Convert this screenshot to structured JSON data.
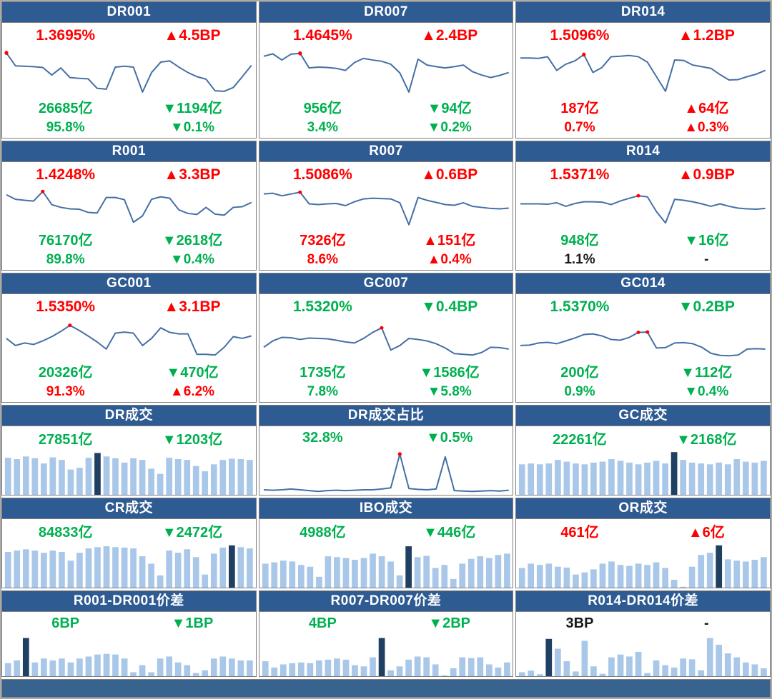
{
  "colors": {
    "header_bg": "#2F5B93",
    "footer_bg": "#38638F",
    "panel_border": "#7F7F7F",
    "frame_border": "#ABABAB",
    "line": "#4470A6",
    "marker": "#FF0000",
    "bar_light": "#A9C7E8",
    "bar_dark": "#1F4063",
    "red": "#FF0000",
    "green": "#00B050",
    "black": "#1A1A1A"
  },
  "chart_data": [
    {
      "title": "DR001",
      "type": "line",
      "stats": [
        {
          "text": "1.3695%",
          "dir": "none",
          "color": "red"
        },
        {
          "text": "4.5BP",
          "dir": "up",
          "color": "red"
        },
        {
          "text": "26685亿",
          "dir": "none",
          "color": "green"
        },
        {
          "text": "1194亿",
          "dir": "down",
          "color": "green"
        },
        {
          "text": "95.8%",
          "dir": "none",
          "color": "green"
        },
        {
          "text": "0.1%",
          "dir": "down",
          "color": "green"
        }
      ],
      "series": [
        97,
        66,
        65,
        64,
        62,
        44,
        61,
        38,
        36,
        35,
        12,
        10,
        63,
        65,
        63,
        3,
        50,
        75,
        78,
        63,
        50,
        40,
        34,
        6,
        5,
        14,
        40,
        67
      ],
      "markers": [
        0
      ]
    },
    {
      "title": "DR007",
      "type": "line",
      "stats": [
        {
          "text": "1.4645%",
          "dir": "none",
          "color": "red"
        },
        {
          "text": "2.4BP",
          "dir": "up",
          "color": "red"
        },
        {
          "text": "956亿",
          "dir": "none",
          "color": "green"
        },
        {
          "text": "94亿",
          "dir": "down",
          "color": "green"
        },
        {
          "text": "3.4%",
          "dir": "none",
          "color": "green"
        },
        {
          "text": "0.2%",
          "dir": "down",
          "color": "green"
        }
      ],
      "series": [
        89,
        95,
        80,
        94,
        96,
        61,
        63,
        62,
        60,
        55,
        74,
        84,
        80,
        77,
        70,
        49,
        3,
        82,
        68,
        64,
        61,
        64,
        68,
        52,
        44,
        38,
        43,
        50
      ],
      "markers": [
        4
      ]
    },
    {
      "title": "DR014",
      "type": "line",
      "stats": [
        {
          "text": "1.5096%",
          "dir": "none",
          "color": "red"
        },
        {
          "text": "1.2BP",
          "dir": "up",
          "color": "red"
        },
        {
          "text": "187亿",
          "dir": "none",
          "color": "red"
        },
        {
          "text": "64亿",
          "dir": "up",
          "color": "red"
        },
        {
          "text": "0.7%",
          "dir": "none",
          "color": "red"
        },
        {
          "text": "0.3%",
          "dir": "up",
          "color": "red"
        }
      ],
      "series": [
        85,
        85,
        84,
        88,
        55,
        70,
        78,
        93,
        50,
        62,
        88,
        89,
        91,
        88,
        75,
        40,
        5,
        80,
        79,
        68,
        64,
        60,
        45,
        32,
        33,
        40,
        46,
        55
      ],
      "markers": [
        7
      ]
    },
    {
      "title": "R001",
      "type": "line",
      "stats": [
        {
          "text": "1.4248%",
          "dir": "none",
          "color": "red"
        },
        {
          "text": "3.3BP",
          "dir": "up",
          "color": "red"
        },
        {
          "text": "76170亿",
          "dir": "none",
          "color": "green"
        },
        {
          "text": "2618亿",
          "dir": "down",
          "color": "green"
        },
        {
          "text": "89.8%",
          "dir": "none",
          "color": "green"
        },
        {
          "text": "0.4%",
          "dir": "down",
          "color": "green"
        }
      ],
      "series": [
        88,
        75,
        72,
        70,
        97,
        60,
        52,
        48,
        47,
        38,
        36,
        80,
        80,
        74,
        10,
        28,
        75,
        82,
        78,
        45,
        35,
        32,
        52,
        33,
        30,
        52,
        54,
        66
      ],
      "markers": [
        4
      ]
    },
    {
      "title": "R007",
      "type": "line",
      "stats": [
        {
          "text": "1.5086%",
          "dir": "none",
          "color": "red"
        },
        {
          "text": "0.6BP",
          "dir": "up",
          "color": "red"
        },
        {
          "text": "7326亿",
          "dir": "none",
          "color": "red"
        },
        {
          "text": "151亿",
          "dir": "up",
          "color": "red"
        },
        {
          "text": "8.6%",
          "dir": "none",
          "color": "red"
        },
        {
          "text": "0.4%",
          "dir": "up",
          "color": "red"
        }
      ],
      "series": [
        90,
        92,
        85,
        90,
        95,
        62,
        60,
        62,
        63,
        57,
        68,
        76,
        78,
        77,
        76,
        65,
        3,
        80,
        72,
        66,
        60,
        58,
        65,
        55,
        52,
        49,
        48,
        50
      ],
      "markers": [
        4
      ]
    },
    {
      "title": "R014",
      "type": "line",
      "stats": [
        {
          "text": "1.5371%",
          "dir": "none",
          "color": "red"
        },
        {
          "text": "0.9BP",
          "dir": "up",
          "color": "red"
        },
        {
          "text": "948亿",
          "dir": "none",
          "color": "green"
        },
        {
          "text": "16亿",
          "dir": "down",
          "color": "green"
        },
        {
          "text": "1.1%",
          "dir": "none",
          "color": "black"
        },
        {
          "text": "-",
          "dir": "none",
          "color": "black"
        }
      ],
      "series": [
        62,
        62,
        62,
        61,
        65,
        55,
        63,
        68,
        68,
        67,
        60,
        70,
        78,
        85,
        82,
        40,
        8,
        75,
        72,
        68,
        62,
        55,
        62,
        55,
        50,
        48,
        47,
        49
      ],
      "markers": [
        13
      ]
    },
    {
      "title": "GC001",
      "type": "line",
      "stats": [
        {
          "text": "1.5350%",
          "dir": "none",
          "color": "red"
        },
        {
          "text": "3.1BP",
          "dir": "up",
          "color": "red"
        },
        {
          "text": "20326亿",
          "dir": "none",
          "color": "green"
        },
        {
          "text": "470亿",
          "dir": "down",
          "color": "green"
        },
        {
          "text": "91.3%",
          "dir": "none",
          "color": "red"
        },
        {
          "text": "6.2%",
          "dir": "up",
          "color": "red"
        }
      ],
      "series": [
        55,
        35,
        42,
        38,
        48,
        60,
        75,
        92,
        78,
        62,
        45,
        25,
        70,
        73,
        70,
        35,
        55,
        85,
        72,
        68,
        68,
        10,
        10,
        8,
        30,
        60,
        55,
        62
      ],
      "markers": [
        7
      ]
    },
    {
      "title": "GC007",
      "type": "line",
      "stats": [
        {
          "text": "1.5320%",
          "dir": "none",
          "color": "green"
        },
        {
          "text": "0.4BP",
          "dir": "down",
          "color": "green"
        },
        {
          "text": "1735亿",
          "dir": "none",
          "color": "green"
        },
        {
          "text": "1586亿",
          "dir": "down",
          "color": "green"
        },
        {
          "text": "7.8%",
          "dir": "none",
          "color": "green"
        },
        {
          "text": "5.8%",
          "dir": "down",
          "color": "green"
        }
      ],
      "series": [
        30,
        48,
        58,
        57,
        52,
        56,
        55,
        54,
        50,
        45,
        42,
        55,
        72,
        85,
        22,
        35,
        55,
        52,
        48,
        40,
        28,
        12,
        10,
        8,
        15,
        30,
        29,
        25
      ],
      "markers": [
        13
      ]
    },
    {
      "title": "GC014",
      "type": "line",
      "stats": [
        {
          "text": "1.5370%",
          "dir": "none",
          "color": "green"
        },
        {
          "text": "0.2BP",
          "dir": "down",
          "color": "green"
        },
        {
          "text": "200亿",
          "dir": "none",
          "color": "green"
        },
        {
          "text": "112亿",
          "dir": "down",
          "color": "green"
        },
        {
          "text": "0.9%",
          "dir": "none",
          "color": "green"
        },
        {
          "text": "0.4%",
          "dir": "down",
          "color": "green"
        }
      ],
      "series": [
        35,
        36,
        42,
        44,
        40,
        48,
        56,
        66,
        68,
        62,
        52,
        50,
        58,
        72,
        73,
        28,
        29,
        42,
        43,
        40,
        30,
        13,
        7,
        6,
        8,
        25,
        26,
        25
      ],
      "markers": [
        13,
        14
      ]
    },
    {
      "title": "DR成交",
      "type": "bar",
      "stats": [
        {
          "text": "27851亿",
          "dir": "none",
          "color": "green"
        },
        {
          "text": "1203亿",
          "dir": "down",
          "color": "green"
        }
      ],
      "series": [
        85,
        82,
        88,
        84,
        72,
        86,
        80,
        58,
        62,
        85,
        96,
        88,
        84,
        74,
        84,
        80,
        60,
        48,
        85,
        82,
        80,
        66,
        54,
        70,
        80,
        83,
        82,
        80
      ],
      "highlight_index": 10
    },
    {
      "title": "DR成交占比",
      "type": "line",
      "stats": [
        {
          "text": "32.8%",
          "dir": "none",
          "color": "green"
        },
        {
          "text": "0.5%",
          "dir": "down",
          "color": "green"
        }
      ],
      "series": [
        7,
        6,
        7,
        9,
        7,
        5,
        3,
        5,
        6,
        5,
        6,
        7,
        7,
        9,
        12,
        95,
        10,
        8,
        7,
        9,
        88,
        5,
        4,
        3,
        4,
        5,
        4,
        6
      ],
      "markers": [
        15
      ]
    },
    {
      "title": "GC成交",
      "type": "bar",
      "stats": [
        {
          "text": "22261亿",
          "dir": "none",
          "color": "green"
        },
        {
          "text": "2168亿",
          "dir": "down",
          "color": "green"
        }
      ],
      "series": [
        70,
        72,
        70,
        72,
        80,
        76,
        72,
        70,
        74,
        76,
        82,
        78,
        74,
        70,
        74,
        78,
        72,
        98,
        80,
        74,
        72,
        70,
        74,
        70,
        82,
        76,
        74,
        78
      ],
      "highlight_index": 17
    },
    {
      "title": "CR成交",
      "type": "bar",
      "stats": [
        {
          "text": "84833亿",
          "dir": "none",
          "color": "green"
        },
        {
          "text": "2472亿",
          "dir": "down",
          "color": "green"
        }
      ],
      "series": [
        82,
        85,
        88,
        85,
        80,
        85,
        82,
        62,
        80,
        90,
        93,
        95,
        93,
        92,
        90,
        72,
        55,
        28,
        85,
        80,
        88,
        70,
        30,
        78,
        92,
        97,
        93,
        90
      ],
      "highlight_index": 25
    },
    {
      "title": "IBO成交",
      "type": "bar",
      "stats": [
        {
          "text": "4988亿",
          "dir": "none",
          "color": "green"
        },
        {
          "text": "446亿",
          "dir": "down",
          "color": "green"
        }
      ],
      "series": [
        55,
        58,
        62,
        60,
        52,
        48,
        25,
        72,
        70,
        68,
        64,
        68,
        78,
        72,
        60,
        28,
        95,
        70,
        73,
        45,
        52,
        20,
        55,
        66,
        72,
        68,
        75,
        78
      ],
      "highlight_index": 16
    },
    {
      "title": "OR成交",
      "type": "bar",
      "stats": [
        {
          "text": "461亿",
          "dir": "none",
          "color": "red"
        },
        {
          "text": "6亿",
          "dir": "up",
          "color": "red"
        }
      ],
      "series": [
        45,
        55,
        52,
        55,
        48,
        46,
        30,
        35,
        42,
        55,
        60,
        52,
        50,
        55,
        52,
        58,
        45,
        18,
        2,
        48,
        75,
        80,
        97,
        65,
        62,
        60,
        64,
        70
      ],
      "highlight_index": 22
    },
    {
      "title": "R001-DR001价差",
      "type": "bar",
      "stats": [
        {
          "text": "6BP",
          "dir": "none",
          "color": "green"
        },
        {
          "text": "1BP",
          "dir": "down",
          "color": "green"
        }
      ],
      "series": [
        33,
        40,
        97,
        35,
        45,
        40,
        45,
        35,
        45,
        50,
        55,
        57,
        55,
        45,
        10,
        28,
        10,
        45,
        50,
        35,
        28,
        8,
        15,
        45,
        50,
        45,
        40,
        40
      ],
      "highlight_index": 2
    },
    {
      "title": "R007-DR007价差",
      "type": "bar",
      "stats": [
        {
          "text": "4BP",
          "dir": "none",
          "color": "green"
        },
        {
          "text": "2BP",
          "dir": "down",
          "color": "green"
        }
      ],
      "series": [
        38,
        22,
        30,
        33,
        35,
        33,
        40,
        42,
        45,
        42,
        28,
        25,
        48,
        97,
        15,
        25,
        42,
        50,
        48,
        30,
        2,
        20,
        48,
        46,
        48,
        30,
        22,
        35
      ],
      "highlight_index": 13
    },
    {
      "title": "R014-DR014价差",
      "type": "bar",
      "stats": [
        {
          "text": "3BP",
          "dir": "none",
          "color": "black"
        },
        {
          "text": "-",
          "dir": "none",
          "color": "black"
        }
      ],
      "series": [
        10,
        14,
        5,
        95,
        70,
        38,
        12,
        90,
        25,
        6,
        48,
        55,
        50,
        62,
        8,
        40,
        28,
        22,
        45,
        43,
        15,
        97,
        80,
        58,
        48,
        35,
        30,
        20
      ],
      "highlight_index": 3
    }
  ]
}
